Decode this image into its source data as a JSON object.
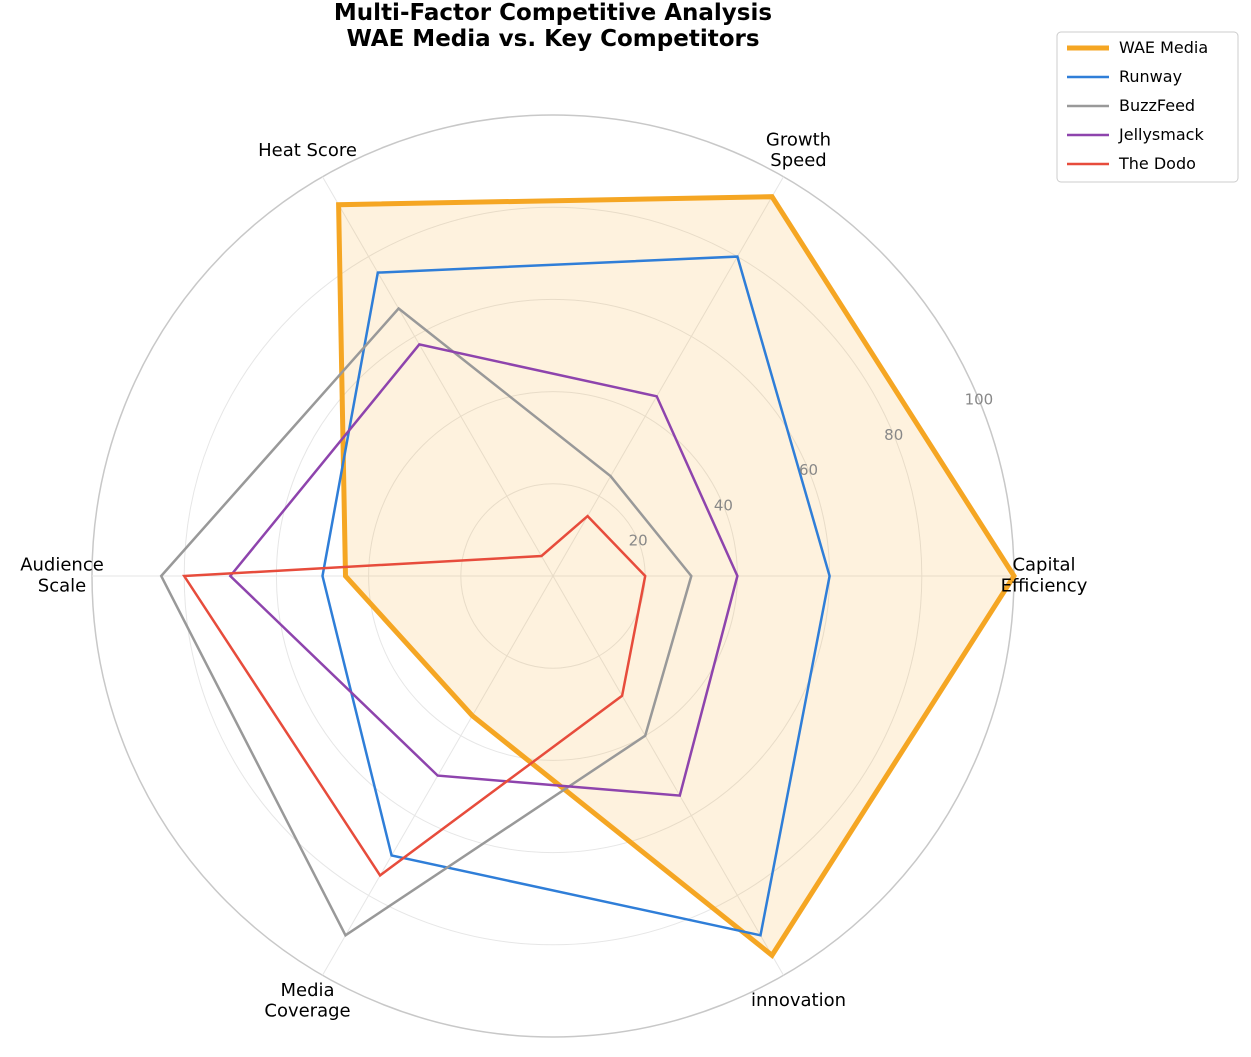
{
  "chart_data": {
    "type": "radar",
    "title": "Multi-Factor Competitive Analysis\nWAE Media vs. Key Competitors",
    "categories": [
      "Capital\nEfficiency",
      "Growth\nSpeed",
      "Heat Score",
      "Audience\nScale",
      "Media\nCoverage",
      "innovation"
    ],
    "rlim": [
      0,
      100
    ],
    "rticks": [
      20,
      40,
      60,
      80,
      100
    ],
    "grid": true,
    "legend": "upper right",
    "series": [
      {
        "name": "WAE Media",
        "color": "#f5a623",
        "values": [
          100,
          95,
          93,
          45,
          35,
          95
        ]
      },
      {
        "name": "Runway",
        "color": "#2f7ed8",
        "values": [
          60,
          80,
          76,
          50,
          70,
          90
        ]
      },
      {
        "name": "BuzzFeed",
        "color": "#999999",
        "values": [
          30,
          25,
          67,
          85,
          90,
          40
        ]
      },
      {
        "name": "Jellysmack",
        "color": "#8e44ad",
        "values": [
          40,
          45,
          58,
          70,
          50,
          55
        ]
      },
      {
        "name": "The Dodo",
        "color": "#e74c3c",
        "values": [
          20,
          15,
          5,
          80,
          75,
          30
        ]
      }
    ]
  }
}
